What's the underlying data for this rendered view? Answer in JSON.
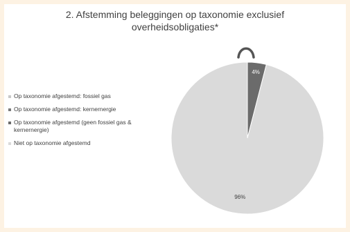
{
  "chart_data": {
    "type": "pie",
    "title_line1": "2. Afstemming beleggingen op taxonomie exclusief",
    "title_line2": "overheidsobligaties*",
    "series": [
      {
        "name": "Op taxonomie afgestemd: fossiel gas",
        "value": 0,
        "color": "#c8c8c8",
        "label": ""
      },
      {
        "name": "Op taxonomie afgestemd: kernernergie",
        "value": 0,
        "color": "#7a7a7a",
        "label": ""
      },
      {
        "name": "Op taxonomie afgestemd (geen fossiel gas & kernernergie)",
        "value": 4,
        "color": "#6b6b6b",
        "label": "4%"
      },
      {
        "name": "Niet op taxonomie afgestemd",
        "value": 96,
        "color": "#dadada",
        "label": "96%"
      }
    ],
    "legend_position": "left"
  }
}
